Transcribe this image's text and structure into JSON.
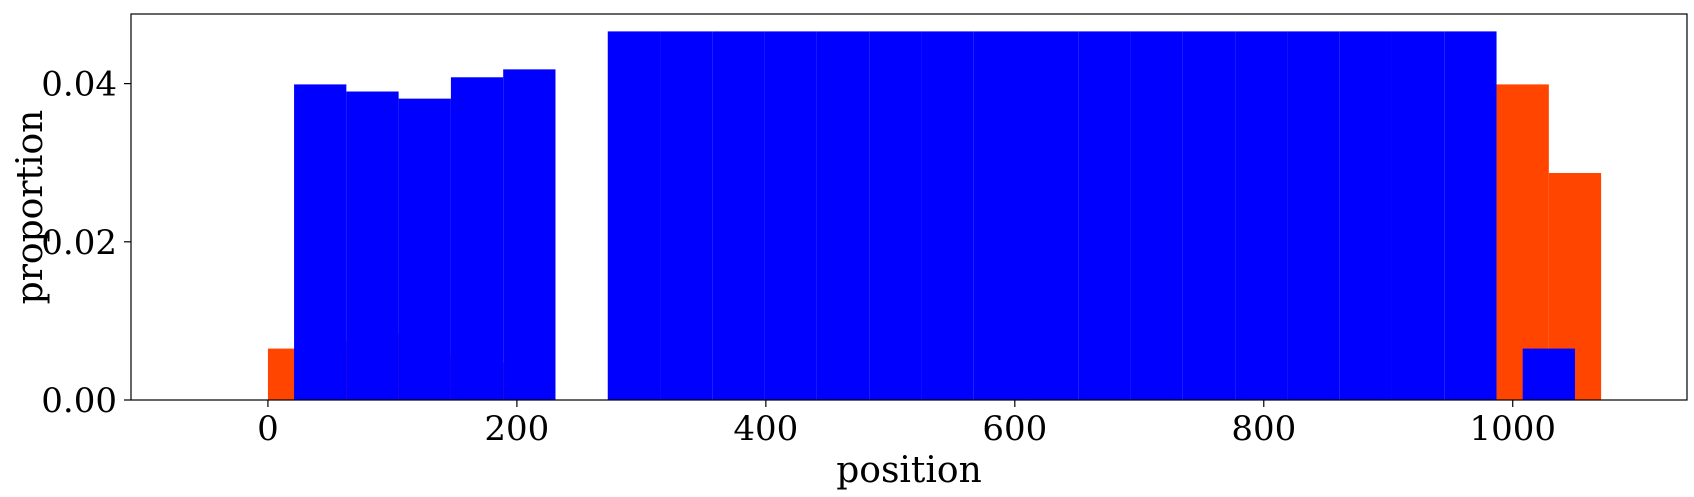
{
  "chart_data": {
    "type": "bar",
    "xlabel": "position",
    "ylabel": "proportion",
    "xlim": [
      -110,
      1140
    ],
    "ylim": [
      0,
      0.0488
    ],
    "xticks": [
      0,
      200,
      400,
      600,
      800,
      1000
    ],
    "xtick_labels": [
      "0",
      "200",
      "400",
      "600",
      "800",
      "1000"
    ],
    "yticks": [
      0.0,
      0.02,
      0.04
    ],
    "ytick_labels": [
      "0.00",
      "0.02",
      "0.04"
    ],
    "bar_width": 42,
    "grid": false,
    "legend": "none",
    "series": [
      {
        "color": "#ff4500",
        "points": [
          {
            "x": 21,
            "y": 0.0065
          },
          {
            "x": 63,
            "y": 0.0074
          },
          {
            "x": 105,
            "y": 0.0084
          },
          {
            "x": 147,
            "y": 0.0056
          },
          {
            "x": 189,
            "y": 0.0047
          },
          {
            "x": 1008,
            "y": 0.0399
          },
          {
            "x": 1050,
            "y": 0.0287
          }
        ]
      },
      {
        "color": "#0000ff",
        "points": [
          {
            "x": 42,
            "y": 0.0399
          },
          {
            "x": 84,
            "y": 0.039
          },
          {
            "x": 126,
            "y": 0.0381
          },
          {
            "x": 168,
            "y": 0.0408
          },
          {
            "x": 210,
            "y": 0.0418
          },
          {
            "x": 294,
            "y": 0.0466
          },
          {
            "x": 336,
            "y": 0.0466
          },
          {
            "x": 378,
            "y": 0.0466
          },
          {
            "x": 420,
            "y": 0.0466
          },
          {
            "x": 462,
            "y": 0.0466
          },
          {
            "x": 504,
            "y": 0.0466
          },
          {
            "x": 546,
            "y": 0.0466
          },
          {
            "x": 588,
            "y": 0.0466
          },
          {
            "x": 630,
            "y": 0.0466
          },
          {
            "x": 672,
            "y": 0.0466
          },
          {
            "x": 714,
            "y": 0.0466
          },
          {
            "x": 756,
            "y": 0.0466
          },
          {
            "x": 798,
            "y": 0.0466
          },
          {
            "x": 840,
            "y": 0.0466
          },
          {
            "x": 882,
            "y": 0.0466
          },
          {
            "x": 924,
            "y": 0.0466
          },
          {
            "x": 966,
            "y": 0.0466
          },
          {
            "x": 1029,
            "y": 0.0065
          }
        ]
      }
    ]
  }
}
